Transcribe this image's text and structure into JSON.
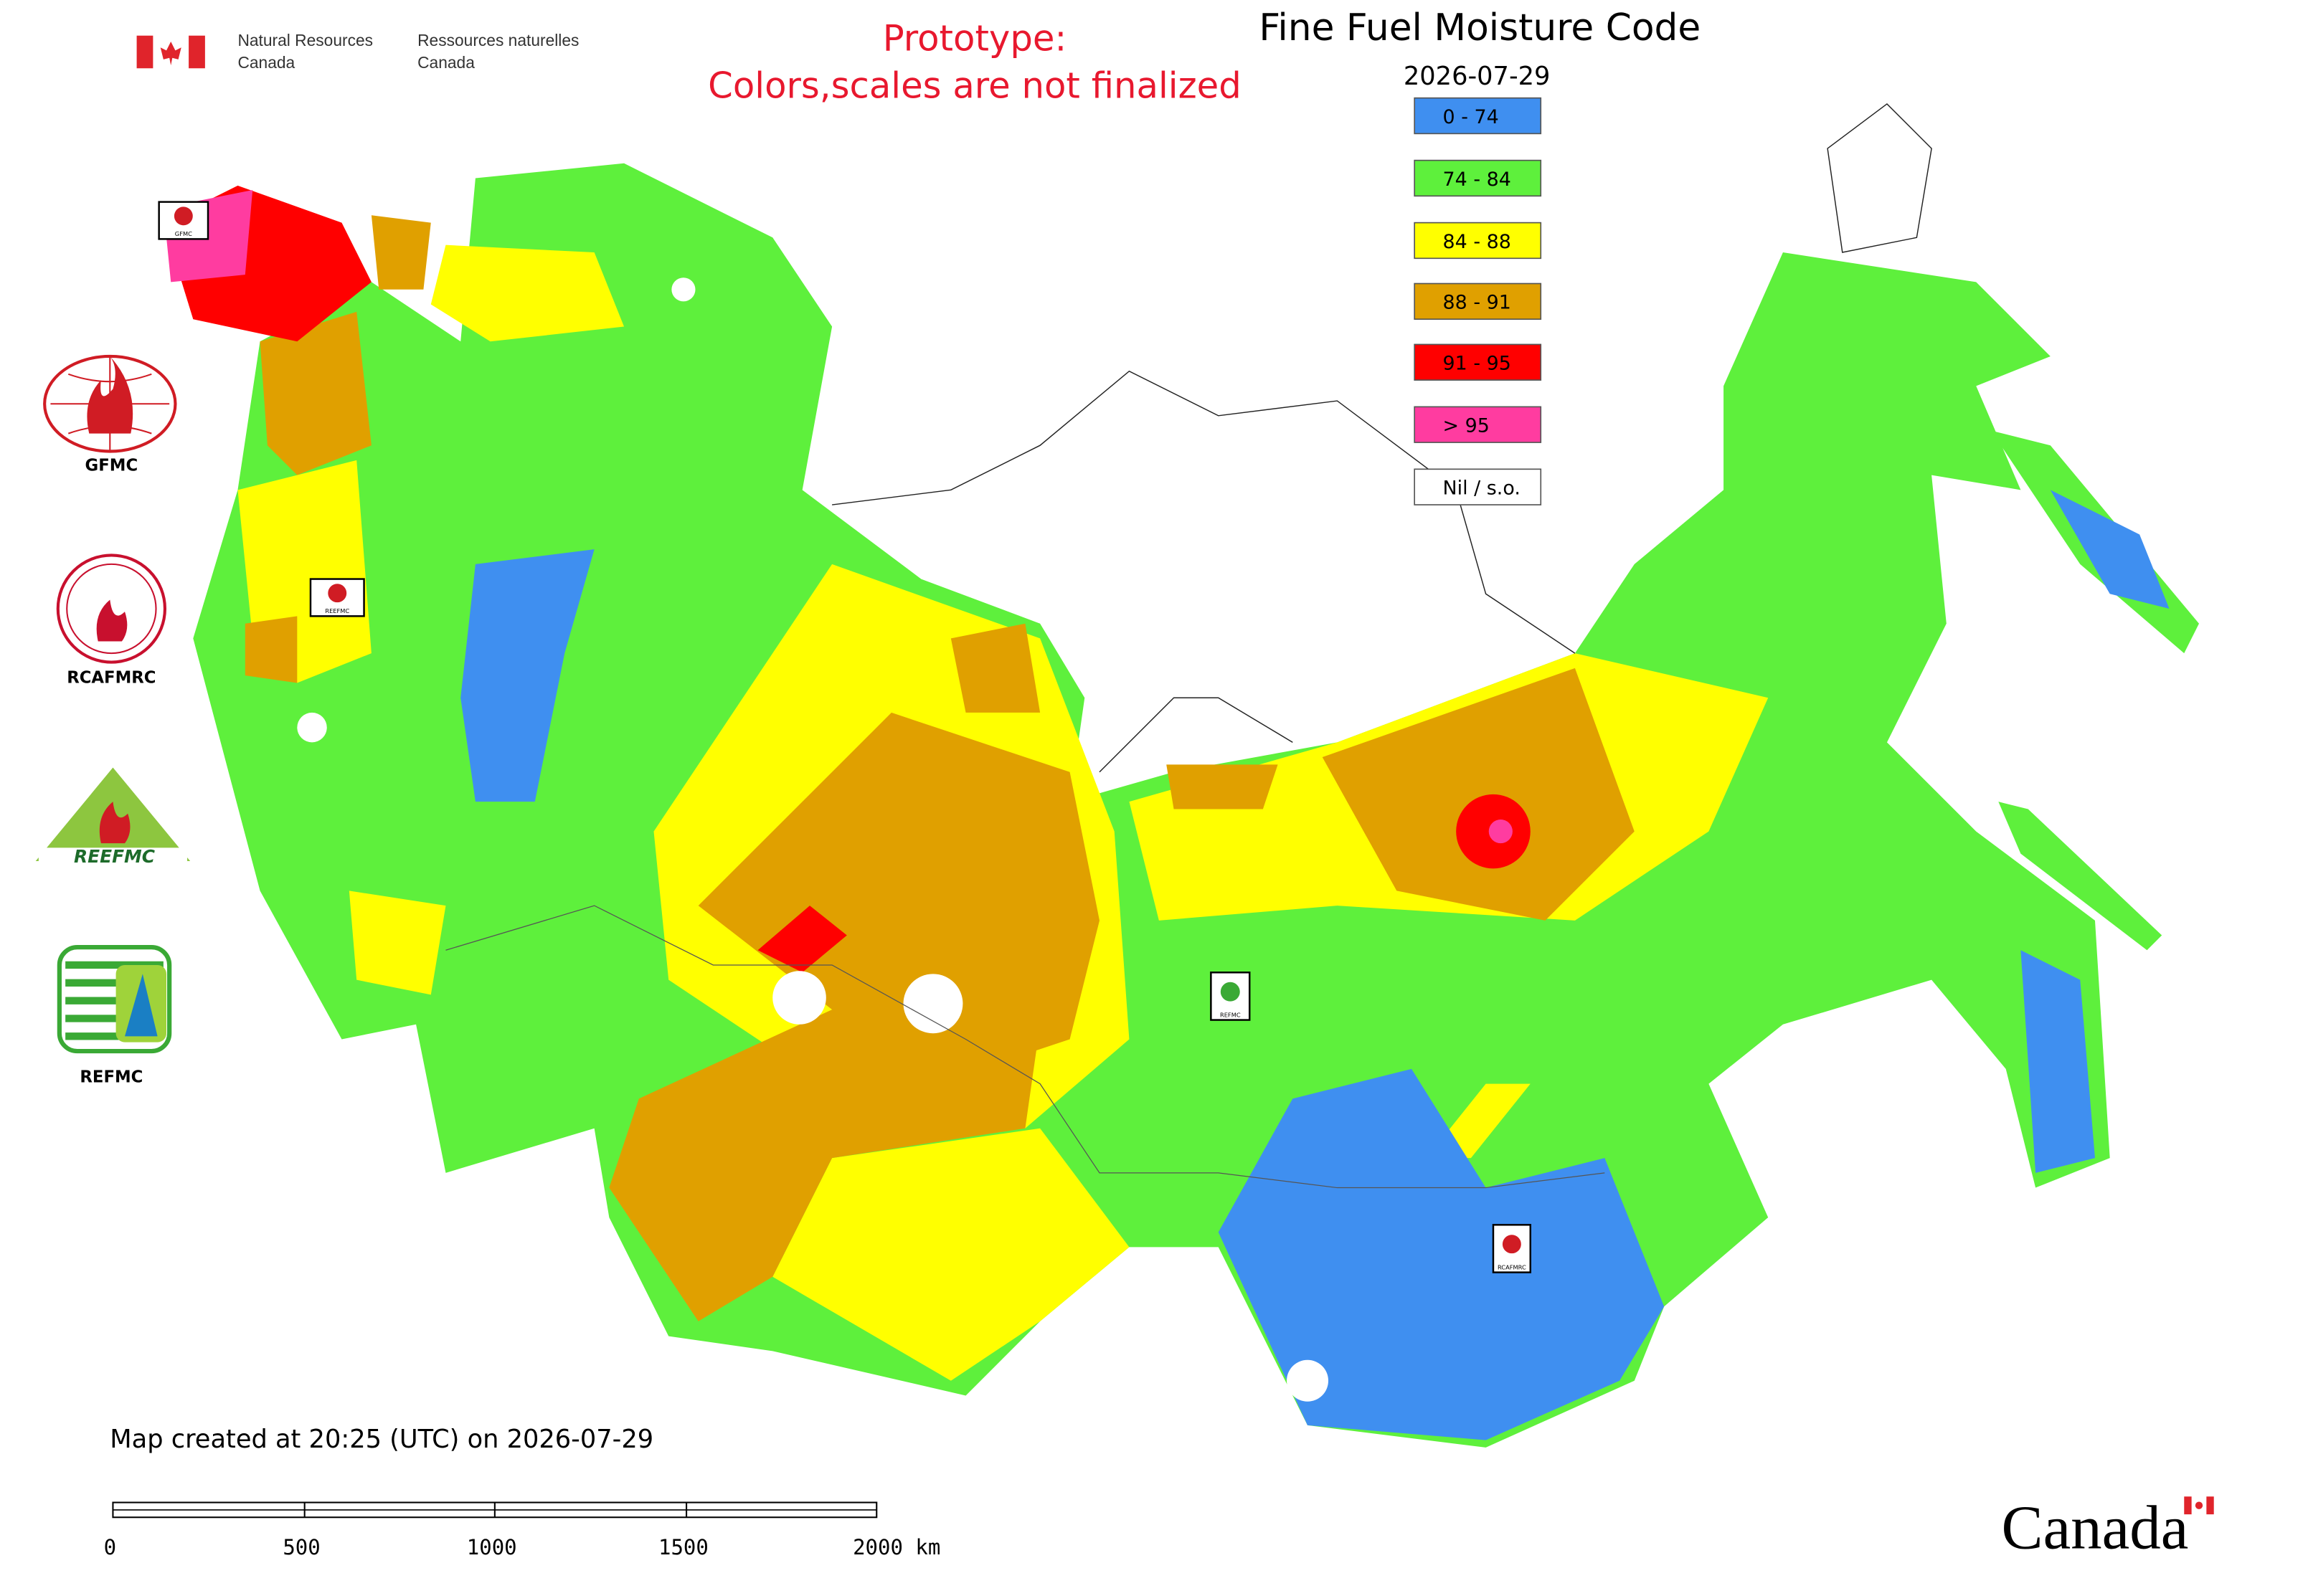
{
  "header": {
    "agency_en": [
      "Natural Resources",
      "Canada"
    ],
    "agency_fr": [
      "Ressources naturelles",
      "Canada"
    ]
  },
  "notice": [
    "Prototype:",
    "Colors,scales are not finalized"
  ],
  "title": "Fine Fuel Moisture Code",
  "date": "2026-07-29",
  "legend": [
    {
      "label": "0 - 74",
      "color": "#3f8ff0"
    },
    {
      "label": "74 - 84",
      "color": "#5ef03c"
    },
    {
      "label": "84 - 88",
      "color": "#ffff00"
    },
    {
      "label": "88 - 91",
      "color": "#e0a000"
    },
    {
      "label": "91 - 95",
      "color": "#ff0000"
    },
    {
      "label": "> 95",
      "color": "#ff3ca0"
    },
    {
      "label": "Nil / s.o.",
      "color": "#ffffff"
    }
  ],
  "logos": [
    "GFMC",
    "RCAFMRC",
    "REEFMC",
    "REFMC"
  ],
  "map_badges": [
    "GFMC",
    "REEFMC",
    "REFMC",
    "RCAFMRC"
  ],
  "footer": {
    "created": "Map created at 20:25 (UTC) on 2026-07-29",
    "scale_labels": [
      "0",
      "500",
      "1000",
      "1500",
      "2000 km"
    ],
    "wordmark": "Canada"
  }
}
